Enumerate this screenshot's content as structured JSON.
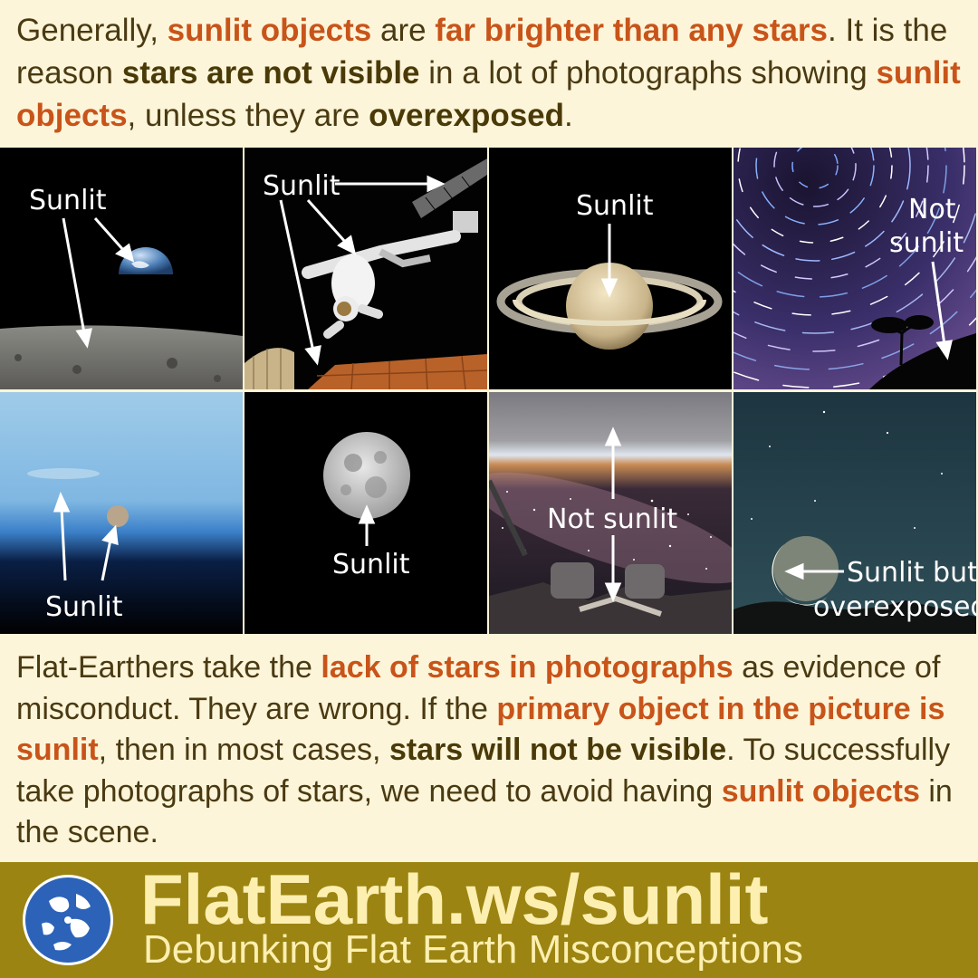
{
  "intro": {
    "t1": "Generally, ",
    "h1": "sunlit objects",
    "t2": " are ",
    "h2": "far brighter than any stars",
    "t3": ". It is the reason ",
    "h3": "stars are not visible",
    "t4": " in a lot of photographs showing ",
    "h4": "sunlit objects",
    "t5": ", unless they are ",
    "h5": "overexposed",
    "t6": "."
  },
  "panels": {
    "p1": {
      "label": "Sunlit"
    },
    "p2": {
      "label": "Sunlit"
    },
    "p3": {
      "label": "Sunlit"
    },
    "p4": {
      "line1": "Not",
      "line2": "sunlit"
    },
    "p5": {
      "label": "Sunlit"
    },
    "p6": {
      "label": "Sunlit"
    },
    "p7": {
      "label": "Not sunlit"
    },
    "p8": {
      "line1": "Sunlit but",
      "line2": "overexposed"
    }
  },
  "outro": {
    "t1": "Flat-Earthers take the ",
    "h1": "lack of stars in photographs",
    "t2": " as evidence of misconduct. They are wrong. If the ",
    "h2": "primary object in the picture is sunlit",
    "t3": ", then in most cases, ",
    "h3": "stars will not be visible",
    "t4": ". To successfully take photographs of stars, we need to avoid having ",
    "h4": "sunlit objects",
    "t5": " in the scene."
  },
  "footer": {
    "site": "FlatEarth.ws/sunlit",
    "tagline": "Debunking Flat Earth Misconceptions"
  },
  "colors": {
    "background": "#fdf5d9",
    "text": "#4a3a12",
    "highlight_orange": "#c8541a",
    "highlight_dark": "#4a3a08",
    "footer_bg": "#9b8411",
    "footer_text": "#fcefb0"
  }
}
